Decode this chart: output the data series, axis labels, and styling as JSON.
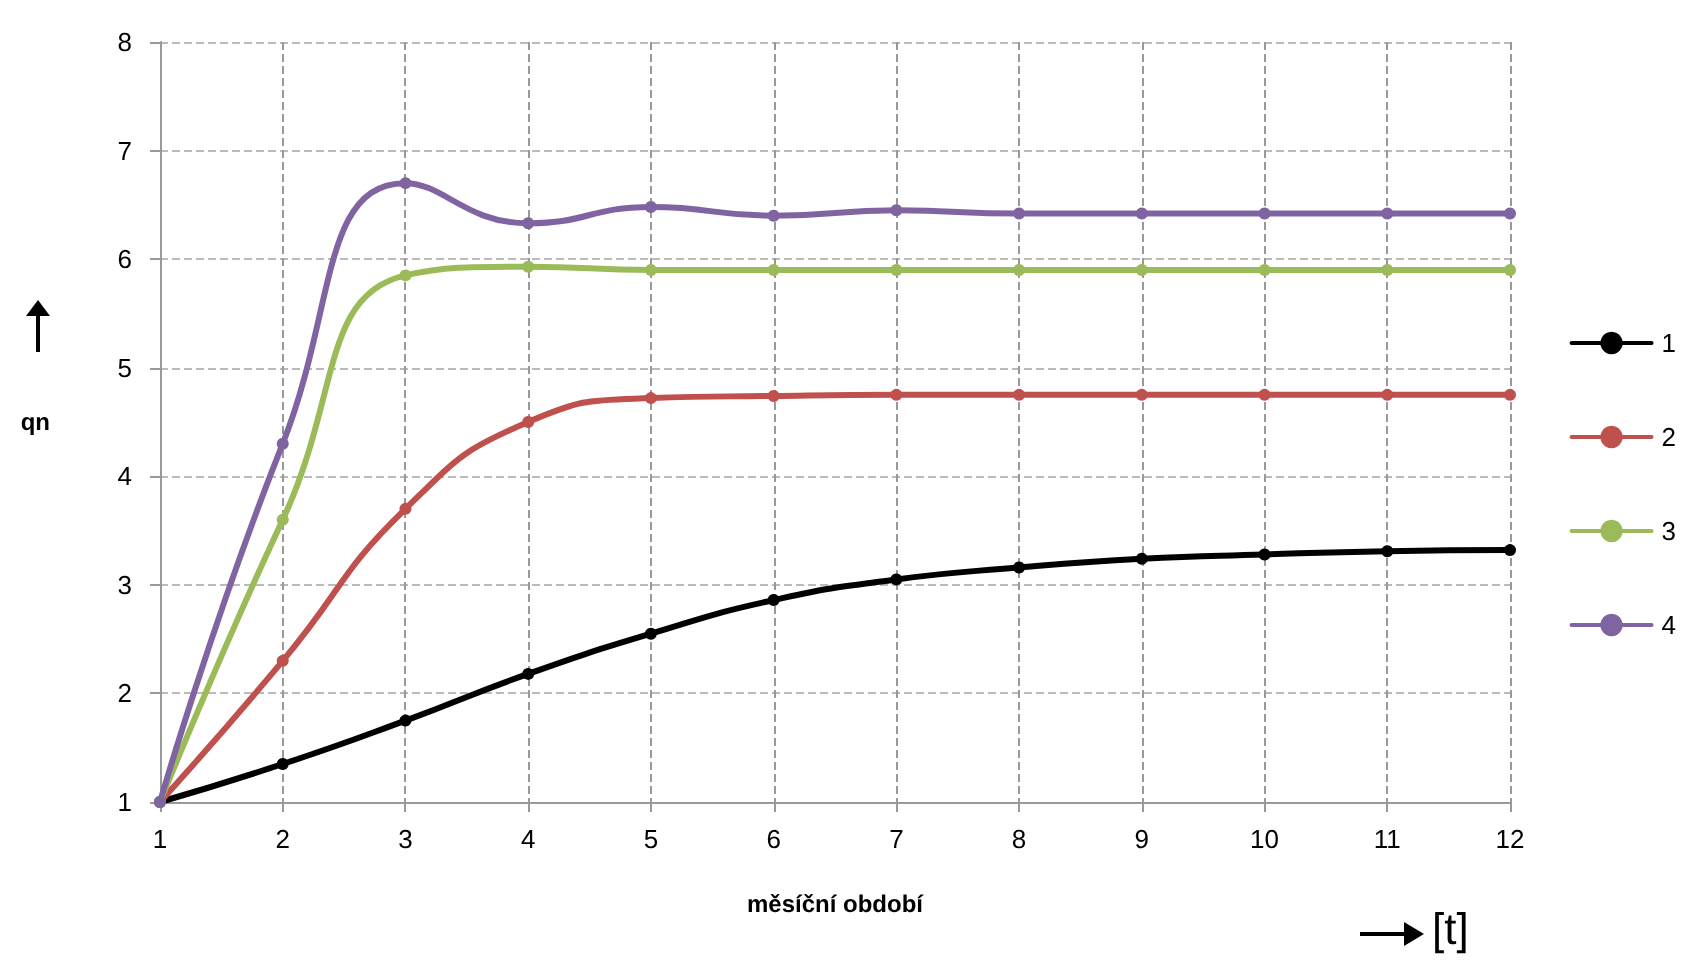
{
  "chart_data": {
    "type": "line",
    "xlabel": "měsíční období",
    "ylabel": "qn",
    "annotations": [
      "[t]"
    ],
    "x": [
      1,
      2,
      3,
      4,
      5,
      6,
      7,
      8,
      9,
      10,
      11,
      12
    ],
    "series": [
      {
        "name": "1",
        "color": "#000000",
        "values": [
          1,
          1.35,
          1.75,
          2.18,
          2.55,
          2.86,
          3.05,
          3.16,
          3.24,
          3.28,
          3.31,
          3.32
        ]
      },
      {
        "name": "2",
        "color": "#c0504d",
        "values": [
          1,
          2.3,
          3.7,
          4.5,
          4.72,
          4.74,
          4.75,
          4.75,
          4.75,
          4.75,
          4.75,
          4.75
        ]
      },
      {
        "name": "3",
        "color": "#9bbb59",
        "values": [
          1,
          3.6,
          5.85,
          5.93,
          5.9,
          5.9,
          5.9,
          5.9,
          5.9,
          5.9,
          5.9,
          5.9
        ]
      },
      {
        "name": "4",
        "color": "#8064a2",
        "values": [
          1,
          4.3,
          6.7,
          6.33,
          6.48,
          6.4,
          6.45,
          6.42,
          6.42,
          6.42,
          6.42,
          6.42
        ]
      }
    ],
    "xlim": [
      1,
      12
    ],
    "xticks": [
      1,
      2,
      3,
      4,
      5,
      6,
      7,
      8,
      9,
      10,
      11,
      12
    ],
    "ylim": [
      1,
      8
    ],
    "yticks": [
      1,
      2,
      3,
      4,
      5,
      6,
      7,
      8
    ],
    "grid": true,
    "legend": "right",
    "marker": "circle",
    "line_style": "solid"
  }
}
